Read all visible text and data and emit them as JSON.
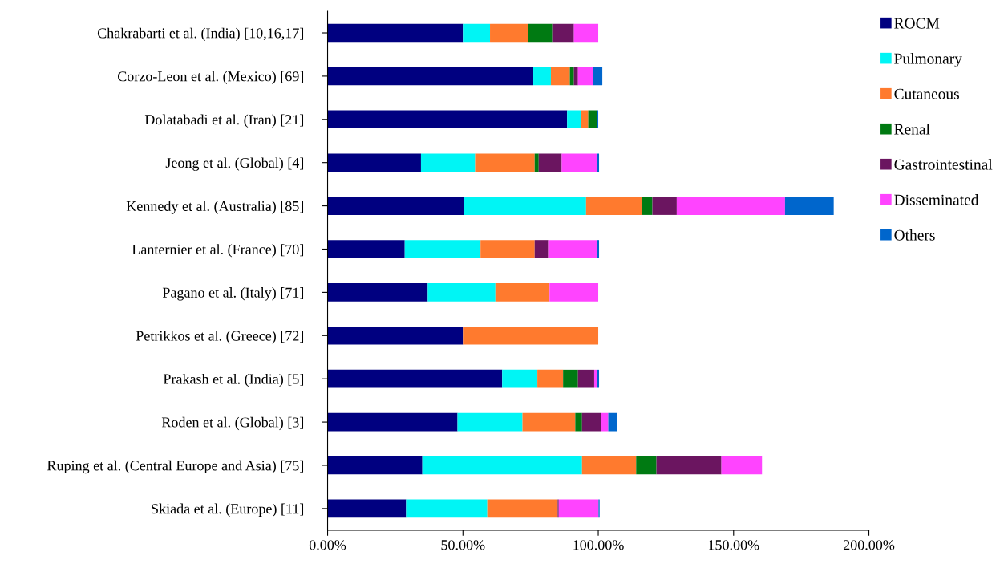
{
  "chart_data": {
    "type": "bar",
    "orientation": "horizontal",
    "stacked": true,
    "categories": [
      "Chakrabarti et al. (India) [10,16,17]",
      "Corzo-Leon et al. (Mexico) [69]",
      "Dolatabadi et al. (Iran) [21]",
      "Jeong et al. (Global) [4]",
      "Kennedy et al. (Australia) [85]",
      "Lanternier et al. (France) [70]",
      "Pagano et al. (Italy) [71]",
      "Petrikkos et al. (Greece) [72]",
      "Prakash et al. (India) [5]",
      "Roden et al. (Global) [3]",
      "Ruping et al. (Central Europe and Asia) [75]",
      "Skiada et al. (Europe) [11]"
    ],
    "series": [
      {
        "name": "ROCM",
        "color": "#000080",
        "values": [
          50,
          76,
          88.5,
          34.5,
          50.5,
          28.5,
          37,
          50,
          64.5,
          48,
          35,
          29
        ]
      },
      {
        "name": "Pulmonary",
        "color": "#00f5f5",
        "values": [
          10,
          6.5,
          5,
          20,
          45,
          28,
          25,
          0,
          13,
          24,
          59,
          30
        ]
      },
      {
        "name": "Cutaneous",
        "color": "#ff7a2e",
        "values": [
          14,
          7,
          2.8,
          22,
          20.5,
          20,
          20,
          50,
          9.5,
          19.5,
          20,
          26
        ]
      },
      {
        "name": "Renal",
        "color": "#007a12",
        "values": [
          9,
          1.5,
          3.2,
          1.5,
          4,
          0,
          0,
          0,
          5.5,
          2.5,
          7.5,
          0
        ]
      },
      {
        "name": "Gastrointestinal",
        "color": "#6b1560",
        "values": [
          8,
          1.5,
          0,
          8.5,
          9,
          5,
          0,
          0,
          6,
          7,
          24,
          0.4
        ]
      },
      {
        "name": "Disseminated",
        "color": "#ff44ff",
        "values": [
          9,
          5.5,
          0,
          13,
          40,
          18,
          18,
          0,
          1.2,
          2.7,
          15,
          14.7
        ]
      },
      {
        "name": "Others",
        "color": "#0066cc",
        "values": [
          0,
          3.5,
          0.5,
          0.8,
          18,
          0.8,
          0,
          0,
          0.6,
          3.3,
          0,
          0.4
        ]
      }
    ],
    "xlim": [
      0,
      200
    ],
    "xticks": [
      {
        "value": 0,
        "label": "0.00%"
      },
      {
        "value": 50,
        "label": "50.00%"
      },
      {
        "value": 100,
        "label": "100.00%"
      },
      {
        "value": 150,
        "label": "150.00%"
      },
      {
        "value": 200,
        "label": "200.00%"
      }
    ],
    "legend": "right",
    "grid": false
  }
}
